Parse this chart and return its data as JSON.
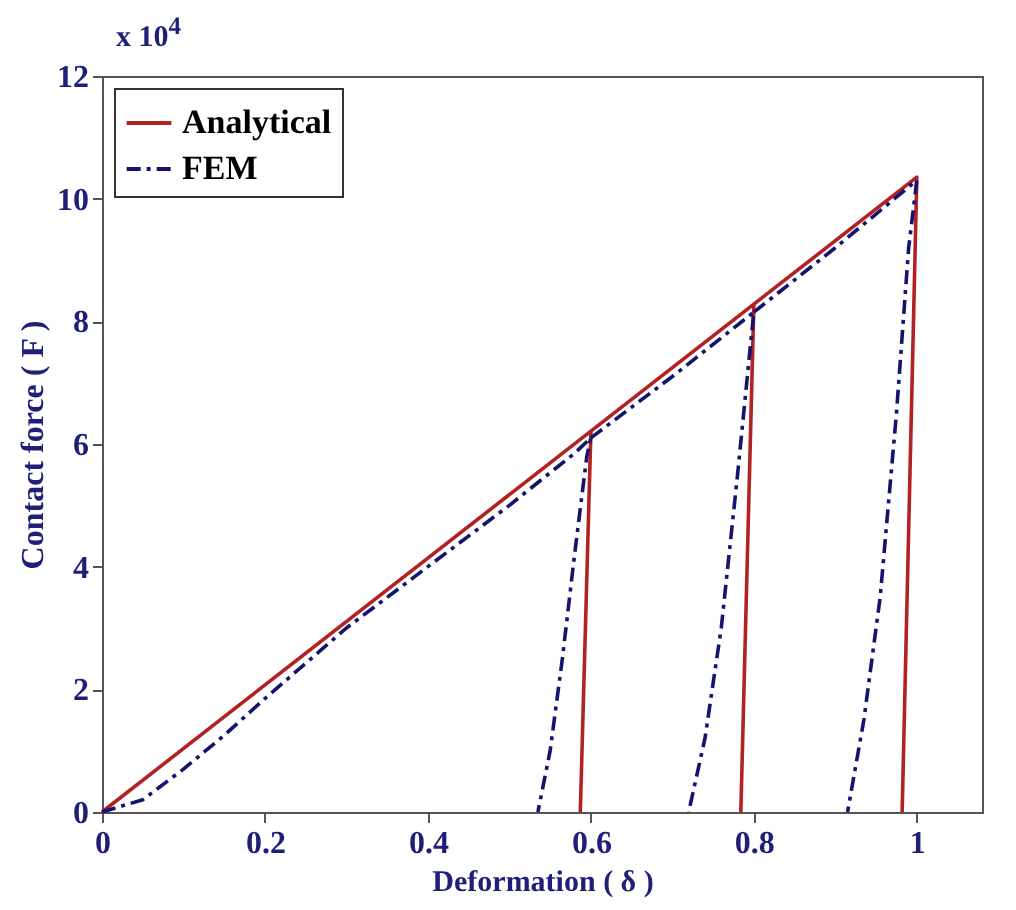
{
  "chart_data": {
    "type": "line",
    "xlabel": "Deformation ( δ )",
    "ylabel": "Contact force ( F )",
    "annotations": [
      "x 10$^{4}$"
    ],
    "xlim": [
      0,
      1.08
    ],
    "xticks": [
      0,
      0.2,
      0.4,
      0.6,
      0.8,
      1
    ],
    "ylim": [
      0,
      12
    ],
    "yticks": [
      0,
      2,
      4,
      6,
      8,
      10,
      12
    ],
    "legend": "top left",
    "grid": false,
    "marker": "none",
    "series": [
      {
        "name": "Analytical",
        "color": "#b22222",
        "line_style": "solid",
        "x": [
          0,
          0.6,
          0.587,
          null,
          0.6,
          0.8,
          0.784,
          null,
          0.8,
          1.0,
          0.982
        ],
        "values": [
          0,
          6.21,
          0,
          null,
          6.21,
          8.28,
          0,
          null,
          8.28,
          10.35,
          0
        ]
      },
      {
        "name": "FEM",
        "color": "#14146e",
        "line_style": "dashdot",
        "x": [
          0,
          0.05,
          0.1,
          0.15,
          0.2,
          0.3,
          0.4,
          0.5,
          0.58,
          0.6,
          0.595,
          0.58,
          0.565,
          0.55,
          0.535,
          null,
          0.6,
          0.7,
          0.8,
          0.795,
          0.78,
          0.76,
          0.74,
          0.72,
          null,
          0.8,
          0.9,
          1.0,
          0.99,
          0.975,
          0.955,
          0.935,
          0.915
        ],
        "values": [
          0,
          0.2,
          0.7,
          1.25,
          1.85,
          3.0,
          4.0,
          5.0,
          5.85,
          6.1,
          5.8,
          4.2,
          2.5,
          1.0,
          0,
          null,
          6.1,
          7.1,
          8.15,
          7.5,
          5.5,
          3.0,
          1.2,
          0,
          null,
          8.15,
          9.2,
          10.3,
          9.2,
          6.5,
          3.5,
          1.5,
          0
        ]
      }
    ]
  }
}
